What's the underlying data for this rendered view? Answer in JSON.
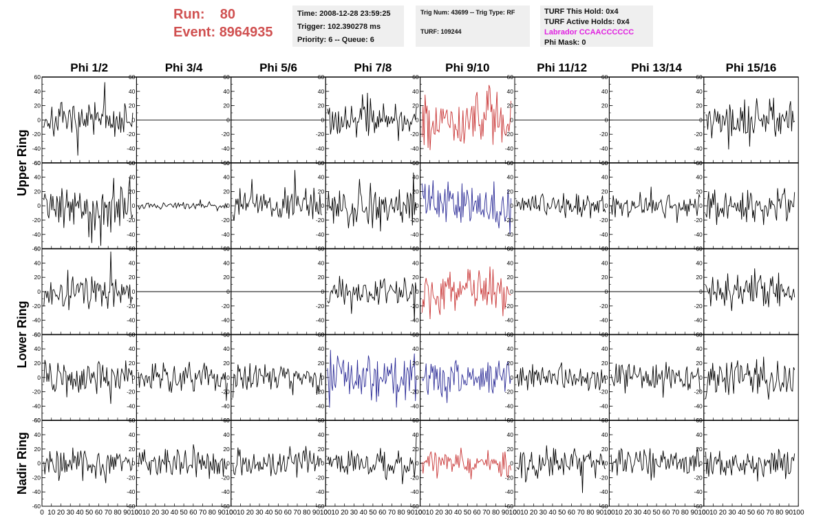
{
  "header": {
    "run_label": "Run:",
    "run_value": "80",
    "event_label": "Event:",
    "event_value": "8964935",
    "time": "Time: 2008-12-28 23:59:25",
    "trigger": "Trigger: 102.390278 ms",
    "priority": "Priority: 6 -- Queue: 6",
    "trig_num": "Trig Num: 43699 -- Trig Type: RF",
    "turf": "TURF: 109244",
    "turf_this_hold": "TURF This Hold: 0x4",
    "turf_active_holds": "TURF Active Holds: 0x4",
    "labrador": "Labrador CCAACCCCCC",
    "phi_mask": "Phi Mask: 0"
  },
  "colors": {
    "black": "#000000",
    "red": "#c83232",
    "blue": "#2a2a96",
    "run_text": "#d05050",
    "labrador_text": "#e020e0",
    "panel_bg": "#efefef"
  },
  "chart_data": {
    "type": "line",
    "columns": [
      "Phi 1/2",
      "Phi 3/4",
      "Phi 5/6",
      "Phi 7/8",
      "Phi 9/10",
      "Phi 11/12",
      "Phi 13/14",
      "Phi 15/16"
    ],
    "ring_labels": [
      {
        "label": "Upper Ring",
        "rows": [
          0,
          1
        ]
      },
      {
        "label": "Lower Ring",
        "rows": [
          2,
          3
        ]
      },
      {
        "label": "Nadir Ring",
        "rows": [
          4
        ]
      }
    ],
    "xlim": [
      0,
      100
    ],
    "x_ticks": [
      0,
      10,
      20,
      30,
      40,
      50,
      60,
      70,
      80,
      90,
      100
    ],
    "x_tick_labels": [
      "0",
      "10",
      "20",
      "30",
      "40",
      "50",
      "60",
      "70",
      "80",
      "90",
      "100"
    ],
    "ylim": [
      -60,
      60
    ],
    "y_ticks": [
      -60,
      -40,
      -20,
      0,
      20,
      40,
      60
    ],
    "y_tick_labels": [
      "-60",
      "-40",
      "-20",
      "0",
      "20",
      "40",
      "60"
    ],
    "samples": 90,
    "waveforms": [
      [
        {
          "color": "black",
          "amp": 15
        },
        {
          "color": "black",
          "amp": 0
        },
        {
          "color": "black",
          "amp": 0
        },
        {
          "color": "black",
          "amp": 15
        },
        {
          "color": "red",
          "amp": 24
        },
        {
          "color": "black",
          "amp": 0
        },
        {
          "color": "black",
          "amp": 0
        },
        {
          "color": "black",
          "amp": 18
        }
      ],
      [
        {
          "color": "black",
          "amp": 20
        },
        {
          "color": "black",
          "amp": 3
        },
        {
          "color": "black",
          "amp": 13
        },
        {
          "color": "black",
          "amp": 17
        },
        {
          "color": "blue",
          "amp": 20
        },
        {
          "color": "black",
          "amp": 11
        },
        {
          "color": "black",
          "amp": 11
        },
        {
          "color": "black",
          "amp": 16
        }
      ],
      [
        {
          "color": "black",
          "amp": 16
        },
        {
          "color": "black",
          "amp": 0
        },
        {
          "color": "black",
          "amp": 0
        },
        {
          "color": "black",
          "amp": 13
        },
        {
          "color": "red",
          "amp": 19
        },
        {
          "color": "black",
          "amp": 0
        },
        {
          "color": "black",
          "amp": 0
        },
        {
          "color": "black",
          "amp": 15
        }
      ],
      [
        {
          "color": "black",
          "amp": 14
        },
        {
          "color": "black",
          "amp": 13
        },
        {
          "color": "black",
          "amp": 13
        },
        {
          "color": "blue",
          "amp": 19
        },
        {
          "color": "blue",
          "amp": 17
        },
        {
          "color": "black",
          "amp": 11
        },
        {
          "color": "black",
          "amp": 12
        },
        {
          "color": "black",
          "amp": 18
        }
      ],
      [
        {
          "color": "black",
          "amp": 14
        },
        {
          "color": "black",
          "amp": 14
        },
        {
          "color": "black",
          "amp": 11
        },
        {
          "color": "black",
          "amp": 13
        },
        {
          "color": "red",
          "amp": 11
        },
        {
          "color": "black",
          "amp": 13
        },
        {
          "color": "black",
          "amp": 13
        },
        {
          "color": "black",
          "amp": 13
        }
      ]
    ]
  }
}
